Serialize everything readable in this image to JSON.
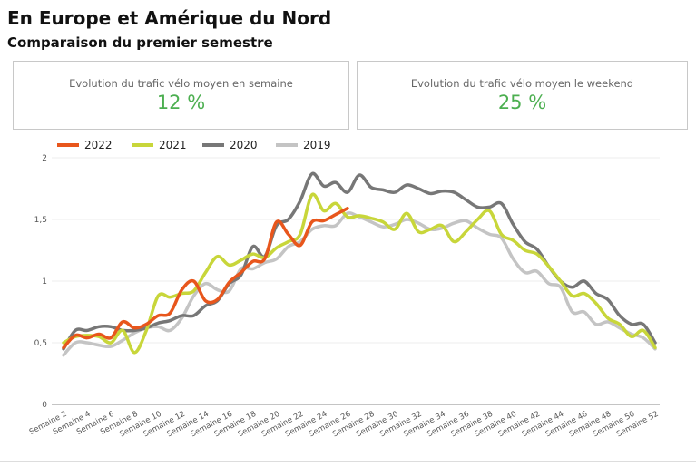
{
  "header": {
    "title": "En Europe et Amérique du Nord",
    "subtitle": "Comparaison du premier semestre"
  },
  "kpis": [
    {
      "label": "Evolution du trafic vélo moyen en semaine",
      "value": "12 %"
    },
    {
      "label": "Evolution du trafic vélo moyen le weekend",
      "value": "25 %"
    }
  ],
  "chart_data": {
    "type": "line",
    "categories": [
      "Semaine 2",
      null,
      "Semaine 4",
      null,
      "Semaine 6",
      null,
      "Semaine 8",
      null,
      "Semaine 10",
      null,
      "Semaine 12",
      null,
      "Semaine 14",
      null,
      "Semaine 16",
      null,
      "Semaine 18",
      null,
      "Semaine 20",
      null,
      "Semaine 22",
      null,
      "Semaine 24",
      null,
      "Semaine 26",
      null,
      "Semaine 28",
      null,
      "Semaine 30",
      null,
      "Semaine 32",
      null,
      "Semaine 34",
      null,
      "Semaine 36",
      null,
      "Semaine 38",
      null,
      "Semaine 40",
      null,
      "Semaine 42",
      null,
      "Semaine 44",
      null,
      "Semaine 46",
      null,
      "Semaine 48",
      null,
      "Semaine 50",
      null,
      "Semaine 52"
    ],
    "series": [
      {
        "name": "2022",
        "color": "#e8561c",
        "values": [
          0.46,
          0.56,
          0.54,
          0.57,
          0.54,
          0.67,
          0.62,
          0.65,
          0.72,
          0.74,
          0.93,
          1.0,
          0.84,
          0.85,
          0.99,
          1.07,
          1.16,
          1.18,
          1.48,
          1.38,
          1.29,
          1.48,
          1.49,
          1.54,
          1.59,
          null,
          null,
          null,
          null,
          null,
          null,
          null,
          null,
          null,
          null,
          null,
          null,
          null,
          null,
          null,
          null,
          null,
          null,
          null,
          null,
          null,
          null,
          null,
          null,
          null,
          null
        ]
      },
      {
        "name": "2021",
        "color": "#c8d63a",
        "values": [
          0.5,
          0.55,
          0.56,
          0.55,
          0.5,
          0.6,
          0.42,
          0.6,
          0.88,
          0.87,
          0.9,
          0.92,
          1.07,
          1.2,
          1.13,
          1.17,
          1.22,
          1.19,
          1.27,
          1.32,
          1.38,
          1.7,
          1.57,
          1.63,
          1.52,
          1.53,
          1.51,
          1.48,
          1.42,
          1.55,
          1.4,
          1.42,
          1.45,
          1.32,
          1.4,
          1.5,
          1.57,
          1.38,
          1.33,
          1.25,
          1.22,
          1.12,
          1.0,
          0.88,
          0.9,
          0.82,
          0.7,
          0.65,
          0.55,
          0.6,
          0.46
        ]
      },
      {
        "name": "2020",
        "color": "#777777",
        "values": [
          0.45,
          0.6,
          0.6,
          0.63,
          0.63,
          0.6,
          0.6,
          0.62,
          0.66,
          0.68,
          0.72,
          0.72,
          0.8,
          0.84,
          0.98,
          1.05,
          1.28,
          1.2,
          1.45,
          1.5,
          1.65,
          1.87,
          1.77,
          1.8,
          1.72,
          1.86,
          1.76,
          1.74,
          1.72,
          1.78,
          1.75,
          1.71,
          1.73,
          1.72,
          1.66,
          1.6,
          1.6,
          1.63,
          1.46,
          1.32,
          1.26,
          1.12,
          1.0,
          0.95,
          1.0,
          0.9,
          0.85,
          0.72,
          0.65,
          0.65,
          0.5
        ]
      },
      {
        "name": "2019",
        "color": "#c4c4c4",
        "values": [
          0.4,
          0.5,
          0.5,
          0.48,
          0.47,
          0.52,
          0.58,
          0.62,
          0.63,
          0.6,
          0.7,
          0.88,
          0.98,
          0.93,
          0.92,
          1.1,
          1.1,
          1.15,
          1.18,
          1.28,
          1.32,
          1.42,
          1.45,
          1.45,
          1.55,
          1.52,
          1.48,
          1.44,
          1.46,
          1.5,
          1.47,
          1.42,
          1.43,
          1.47,
          1.49,
          1.43,
          1.38,
          1.35,
          1.18,
          1.07,
          1.08,
          0.98,
          0.95,
          0.75,
          0.75,
          0.65,
          0.67,
          0.62,
          0.57,
          0.54,
          0.45
        ]
      }
    ],
    "ylim": [
      0,
      2
    ],
    "yticks": [
      0,
      {
        "value": 0.5,
        "label": "0,5"
      },
      1,
      {
        "value": 1.5,
        "label": "1,5"
      },
      2
    ],
    "grid": true,
    "legend": "top"
  }
}
